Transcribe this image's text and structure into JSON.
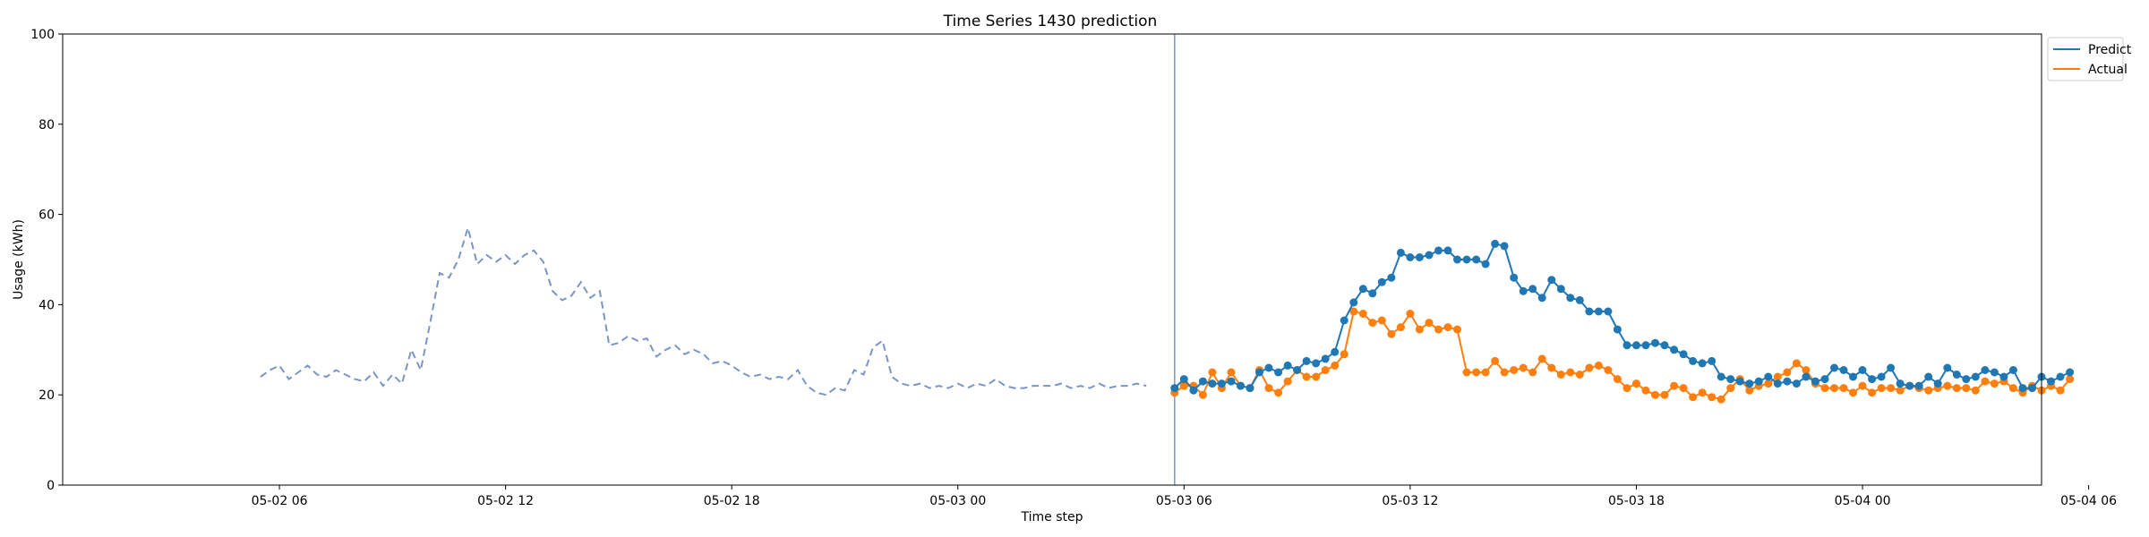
{
  "chart_data": {
    "type": "line",
    "title": "Time Series 1430 prediction",
    "xlabel": "Time step",
    "ylabel": "Usage (kWh)",
    "ylim": [
      0,
      100
    ],
    "yticks": [
      0,
      20,
      40,
      60,
      80,
      100
    ],
    "xlim_hours": [
      -5.75,
      46.75
    ],
    "xticks": [
      {
        "label": "05-02 06",
        "hour": 0
      },
      {
        "label": "05-02 12",
        "hour": 6
      },
      {
        "label": "05-02 18",
        "hour": 12
      },
      {
        "label": "05-03 00",
        "hour": 18
      },
      {
        "label": "05-03 06",
        "hour": 24
      },
      {
        "label": "05-03 12",
        "hour": 30
      },
      {
        "label": "05-03 18",
        "hour": 36
      },
      {
        "label": "05-04 00",
        "hour": 42
      },
      {
        "label": "05-04 06",
        "hour": 48
      }
    ],
    "forecast_start_hour": 23.75,
    "legend_position": "top-right",
    "colors": {
      "history": "#7a96c4",
      "predict": "#1f77b4",
      "actual": "#ff7f0e",
      "divider": "#7a96c4"
    },
    "history": {
      "start_hour": -0.5,
      "step_hours": 0.25,
      "values": [
        24.0,
        25.5,
        26.5,
        23.5,
        25.0,
        26.5,
        24.5,
        24.0,
        25.5,
        24.5,
        23.5,
        23.0,
        25.0,
        22.0,
        24.5,
        22.5,
        30.0,
        25.5,
        36.0,
        47.0,
        46.0,
        50.0,
        57.0,
        49.0,
        51.0,
        49.5,
        51.0,
        49.0,
        51.0,
        52.0,
        49.5,
        43.0,
        41.0,
        42.0,
        45.0,
        41.5,
        43.0,
        31.0,
        31.5,
        33.0,
        32.0,
        32.5,
        28.5,
        30.0,
        31.0,
        29.0,
        30.0,
        29.0,
        27.0,
        27.5,
        26.5,
        25.0,
        24.0,
        24.5,
        23.5,
        24.0,
        23.5,
        25.5,
        22.0,
        20.5,
        20.0,
        21.5,
        21.0,
        25.5,
        24.5,
        30.5,
        32.0,
        24.0,
        22.5,
        22.0,
        22.5,
        21.5,
        22.0,
        21.5,
        22.5,
        21.5,
        22.5,
        22.0,
        23.5,
        22.0,
        21.5,
        21.5,
        22.0,
        22.0,
        22.0,
        22.5,
        21.5,
        22.0,
        21.5,
        22.5,
        21.5,
        22.0,
        22.0,
        22.5,
        22.0
      ]
    },
    "series": [
      {
        "name": "Predict",
        "start_hour": 23.75,
        "step_hours": 0.25,
        "values": [
          21.5,
          23.5,
          21.0,
          23.0,
          22.5,
          22.5,
          23.0,
          22.0,
          21.5,
          25.0,
          26.0,
          25.0,
          26.5,
          25.5,
          27.5,
          27.0,
          28.0,
          29.5,
          36.5,
          40.5,
          43.5,
          42.5,
          45.0,
          46.0,
          51.5,
          50.5,
          50.5,
          51.0,
          52.0,
          52.0,
          50.0,
          50.0,
          50.0,
          49.0,
          53.5,
          53.0,
          46.0,
          43.0,
          43.5,
          41.5,
          45.5,
          43.5,
          41.5,
          41.0,
          38.5,
          38.5,
          38.5,
          34.5,
          31.0,
          31.0,
          31.0,
          31.5,
          31.0,
          30.0,
          29.0,
          27.5,
          27.0,
          27.5,
          24.0,
          23.5,
          23.0,
          22.5,
          23.0,
          24.0,
          22.5,
          23.0,
          22.5,
          24.0,
          23.0,
          23.5,
          26.0,
          25.5,
          24.0,
          25.5,
          23.5,
          24.0,
          26.0,
          22.5,
          22.0,
          22.0,
          24.0,
          22.5,
          26.0,
          24.5,
          23.5,
          24.0,
          25.5,
          25.0,
          24.0,
          25.5,
          21.5,
          21.5,
          24.0,
          23.0,
          24.0,
          25.0
        ]
      },
      {
        "name": "Actual",
        "start_hour": 23.75,
        "step_hours": 0.25,
        "values": [
          20.5,
          22.0,
          22.0,
          20.0,
          25.0,
          21.5,
          25.0,
          22.0,
          21.5,
          25.5,
          21.5,
          20.5,
          23.0,
          25.5,
          24.0,
          24.0,
          25.5,
          26.5,
          29.0,
          38.5,
          38.0,
          36.0,
          36.5,
          33.5,
          35.0,
          38.0,
          34.5,
          36.0,
          34.5,
          35.0,
          34.5,
          25.0,
          25.0,
          25.0,
          27.5,
          25.0,
          25.5,
          26.0,
          25.0,
          28.0,
          26.0,
          24.5,
          25.0,
          24.5,
          26.0,
          26.5,
          25.5,
          23.5,
          21.5,
          22.5,
          21.0,
          20.0,
          20.0,
          22.0,
          21.5,
          19.5,
          20.5,
          19.5,
          19.0,
          21.5,
          23.5,
          21.0,
          22.0,
          22.5,
          24.0,
          25.0,
          27.0,
          25.5,
          22.5,
          21.5,
          21.5,
          21.5,
          20.5,
          22.0,
          20.5,
          21.5,
          21.5,
          21.0,
          22.0,
          21.5,
          21.0,
          21.5,
          22.0,
          21.5,
          21.5,
          21.0,
          23.0,
          22.5,
          23.0,
          21.5,
          20.5,
          22.0,
          21.0,
          22.0,
          21.0,
          23.5
        ]
      }
    ]
  }
}
